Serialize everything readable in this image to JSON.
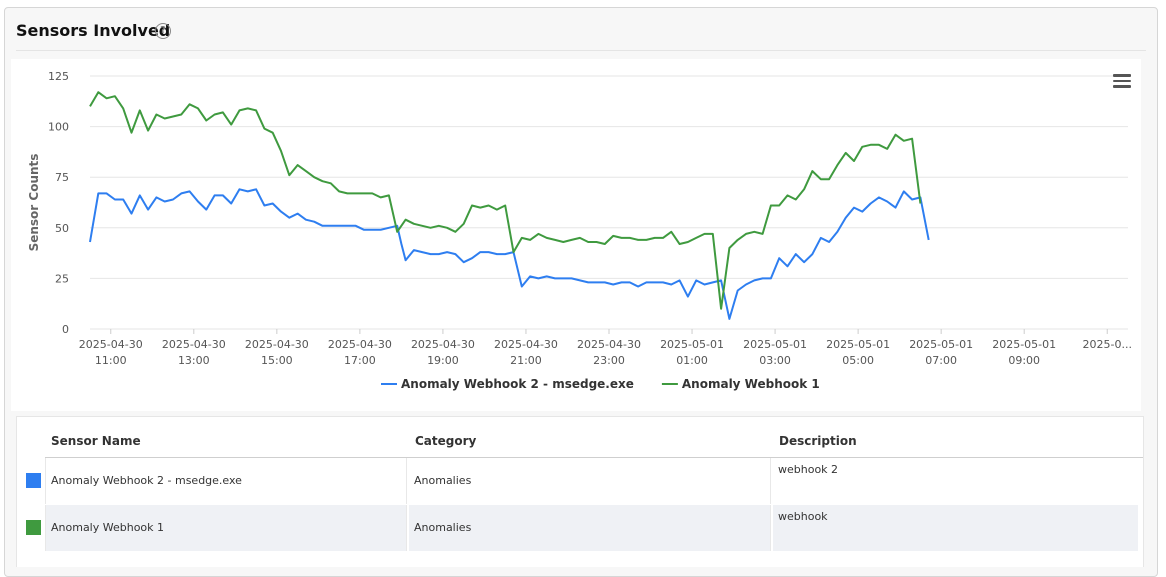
{
  "panel": {
    "title": "Sensors Involved",
    "help_icon": "question-circle-icon",
    "help_glyph": "?"
  },
  "chart_menu_icon": "hamburger-menu-icon",
  "colors": {
    "series_blue": "#2e7ef0",
    "series_green": "#3f9a3f",
    "grid": "#e6e6e6"
  },
  "chart_data": {
    "type": "line",
    "ylabel": "Sensor Counts",
    "ylim": [
      0,
      125
    ],
    "yticks": [
      "0",
      "25",
      "50",
      "75",
      "100",
      "125"
    ],
    "xlim": [
      10.5,
      35.5
    ],
    "x_tick_positions": [
      11,
      13,
      15,
      17,
      19,
      21,
      23,
      25,
      27,
      29,
      31,
      33,
      35
    ],
    "x_tick_labels": [
      [
        "2025-04-30",
        "11:00"
      ],
      [
        "2025-04-30",
        "13:00"
      ],
      [
        "2025-04-30",
        "15:00"
      ],
      [
        "2025-04-30",
        "17:00"
      ],
      [
        "2025-04-30",
        "19:00"
      ],
      [
        "2025-04-30",
        "21:00"
      ],
      [
        "2025-04-30",
        "23:00"
      ],
      [
        "2025-05-01",
        "01:00"
      ],
      [
        "2025-05-01",
        "03:00"
      ],
      [
        "2025-05-01",
        "05:00"
      ],
      [
        "2025-05-01",
        "07:00"
      ],
      [
        "2025-05-01",
        "09:00"
      ],
      [
        "2025-0...",
        ""
      ]
    ],
    "legend_position": "bottom-center",
    "grid": true,
    "series": [
      {
        "name": "Anomaly Webhook 2 - msedge.exe",
        "color": "#2e7ef0",
        "points": [
          [
            10.5,
            43
          ],
          [
            10.7,
            67
          ],
          [
            10.9,
            67
          ],
          [
            11.1,
            64
          ],
          [
            11.3,
            64
          ],
          [
            11.5,
            57
          ],
          [
            11.7,
            66
          ],
          [
            11.9,
            59
          ],
          [
            12.1,
            65
          ],
          [
            12.3,
            63
          ],
          [
            12.5,
            64
          ],
          [
            12.7,
            67
          ],
          [
            12.9,
            68
          ],
          [
            13.1,
            63
          ],
          [
            13.3,
            59
          ],
          [
            13.5,
            66
          ],
          [
            13.7,
            66
          ],
          [
            13.9,
            62
          ],
          [
            14.1,
            69
          ],
          [
            14.3,
            68
          ],
          [
            14.5,
            69
          ],
          [
            14.7,
            61
          ],
          [
            14.9,
            62
          ],
          [
            15.1,
            58
          ],
          [
            15.3,
            55
          ],
          [
            15.5,
            57
          ],
          [
            15.7,
            54
          ],
          [
            15.9,
            53
          ],
          [
            16.1,
            51
          ],
          [
            16.3,
            51
          ],
          [
            16.5,
            51
          ],
          [
            16.7,
            51
          ],
          [
            16.9,
            51
          ],
          [
            17.1,
            49
          ],
          [
            17.3,
            49
          ],
          [
            17.5,
            49
          ],
          [
            17.7,
            50
          ],
          [
            17.9,
            51
          ],
          [
            18.0,
            42
          ],
          [
            18.1,
            34
          ],
          [
            18.3,
            39
          ],
          [
            18.5,
            38
          ],
          [
            18.7,
            37
          ],
          [
            18.9,
            37
          ],
          [
            19.1,
            38
          ],
          [
            19.3,
            37
          ],
          [
            19.5,
            33
          ],
          [
            19.7,
            35
          ],
          [
            19.9,
            38
          ],
          [
            20.1,
            38
          ],
          [
            20.3,
            37
          ],
          [
            20.5,
            37
          ],
          [
            20.7,
            38
          ],
          [
            20.9,
            21
          ],
          [
            21.1,
            26
          ],
          [
            21.3,
            25
          ],
          [
            21.5,
            26
          ],
          [
            21.7,
            25
          ],
          [
            21.9,
            25
          ],
          [
            22.1,
            25
          ],
          [
            22.3,
            24
          ],
          [
            22.5,
            23
          ],
          [
            22.7,
            23
          ],
          [
            22.9,
            23
          ],
          [
            23.1,
            22
          ],
          [
            23.3,
            23
          ],
          [
            23.5,
            23
          ],
          [
            23.7,
            21
          ],
          [
            23.9,
            23
          ],
          [
            24.1,
            23
          ],
          [
            24.3,
            23
          ],
          [
            24.5,
            22
          ],
          [
            24.7,
            24
          ],
          [
            24.9,
            16
          ],
          [
            25.1,
            24
          ],
          [
            25.3,
            22
          ],
          [
            25.5,
            23
          ],
          [
            25.7,
            24
          ],
          [
            25.9,
            5
          ],
          [
            26.1,
            19
          ],
          [
            26.3,
            22
          ],
          [
            26.5,
            24
          ],
          [
            26.7,
            25
          ],
          [
            26.9,
            25
          ],
          [
            27.1,
            35
          ],
          [
            27.3,
            31
          ],
          [
            27.5,
            37
          ],
          [
            27.7,
            33
          ],
          [
            27.9,
            37
          ],
          [
            28.1,
            45
          ],
          [
            28.3,
            43
          ],
          [
            28.5,
            48
          ],
          [
            28.7,
            55
          ],
          [
            28.9,
            60
          ],
          [
            29.1,
            58
          ],
          [
            29.3,
            62
          ],
          [
            29.5,
            65
          ],
          [
            29.7,
            63
          ],
          [
            29.9,
            60
          ],
          [
            30.1,
            68
          ],
          [
            30.3,
            64
          ],
          [
            30.5,
            65
          ],
          [
            30.7,
            44
          ]
        ]
      },
      {
        "name": "Anomaly Webhook 1",
        "color": "#3f9a3f",
        "points": [
          [
            10.5,
            110
          ],
          [
            10.7,
            117
          ],
          [
            10.9,
            114
          ],
          [
            11.1,
            115
          ],
          [
            11.3,
            109
          ],
          [
            11.5,
            97
          ],
          [
            11.7,
            108
          ],
          [
            11.9,
            98
          ],
          [
            12.1,
            106
          ],
          [
            12.3,
            104
          ],
          [
            12.5,
            105
          ],
          [
            12.7,
            106
          ],
          [
            12.9,
            111
          ],
          [
            13.1,
            109
          ],
          [
            13.3,
            103
          ],
          [
            13.5,
            106
          ],
          [
            13.7,
            107
          ],
          [
            13.9,
            101
          ],
          [
            14.1,
            108
          ],
          [
            14.3,
            109
          ],
          [
            14.5,
            108
          ],
          [
            14.7,
            99
          ],
          [
            14.9,
            97
          ],
          [
            15.1,
            88
          ],
          [
            15.3,
            76
          ],
          [
            15.5,
            81
          ],
          [
            15.7,
            78
          ],
          [
            15.9,
            75
          ],
          [
            16.1,
            73
          ],
          [
            16.3,
            72
          ],
          [
            16.5,
            68
          ],
          [
            16.7,
            67
          ],
          [
            16.9,
            67
          ],
          [
            17.1,
            67
          ],
          [
            17.3,
            67
          ],
          [
            17.5,
            65
          ],
          [
            17.7,
            66
          ],
          [
            17.9,
            48
          ],
          [
            18.1,
            54
          ],
          [
            18.3,
            52
          ],
          [
            18.5,
            51
          ],
          [
            18.7,
            50
          ],
          [
            18.9,
            51
          ],
          [
            19.1,
            50
          ],
          [
            19.3,
            48
          ],
          [
            19.5,
            52
          ],
          [
            19.7,
            61
          ],
          [
            19.9,
            60
          ],
          [
            20.1,
            61
          ],
          [
            20.3,
            59
          ],
          [
            20.5,
            61
          ],
          [
            20.7,
            38
          ],
          [
            20.9,
            45
          ],
          [
            21.1,
            44
          ],
          [
            21.3,
            47
          ],
          [
            21.5,
            45
          ],
          [
            21.7,
            44
          ],
          [
            21.9,
            43
          ],
          [
            22.1,
            44
          ],
          [
            22.3,
            45
          ],
          [
            22.5,
            43
          ],
          [
            22.7,
            43
          ],
          [
            22.9,
            42
          ],
          [
            23.1,
            46
          ],
          [
            23.3,
            45
          ],
          [
            23.5,
            45
          ],
          [
            23.7,
            44
          ],
          [
            23.9,
            44
          ],
          [
            24.1,
            45
          ],
          [
            24.3,
            45
          ],
          [
            24.5,
            48
          ],
          [
            24.7,
            42
          ],
          [
            24.9,
            43
          ],
          [
            25.1,
            45
          ],
          [
            25.3,
            47
          ],
          [
            25.5,
            47
          ],
          [
            25.7,
            10
          ],
          [
            25.9,
            40
          ],
          [
            26.1,
            44
          ],
          [
            26.3,
            47
          ],
          [
            26.5,
            48
          ],
          [
            26.7,
            47
          ],
          [
            26.9,
            61
          ],
          [
            27.1,
            61
          ],
          [
            27.3,
            66
          ],
          [
            27.5,
            64
          ],
          [
            27.7,
            69
          ],
          [
            27.9,
            78
          ],
          [
            28.1,
            74
          ],
          [
            28.3,
            74
          ],
          [
            28.5,
            81
          ],
          [
            28.7,
            87
          ],
          [
            28.9,
            83
          ],
          [
            29.1,
            90
          ],
          [
            29.3,
            91
          ],
          [
            29.5,
            91
          ],
          [
            29.7,
            89
          ],
          [
            29.9,
            96
          ],
          [
            30.1,
            93
          ],
          [
            30.3,
            94
          ],
          [
            30.5,
            62
          ]
        ]
      }
    ]
  },
  "table": {
    "headers": [
      "Sensor Name",
      "Category",
      "Description"
    ],
    "rows": [
      {
        "name": "Anomaly Webhook 2 - msedge.exe",
        "category": "Anomalies",
        "description": "webhook 2",
        "color": "#2e7ef0"
      },
      {
        "name": "Anomaly Webhook 1",
        "category": "Anomalies",
        "description": "webhook",
        "color": "#3f9a3f"
      }
    ]
  }
}
